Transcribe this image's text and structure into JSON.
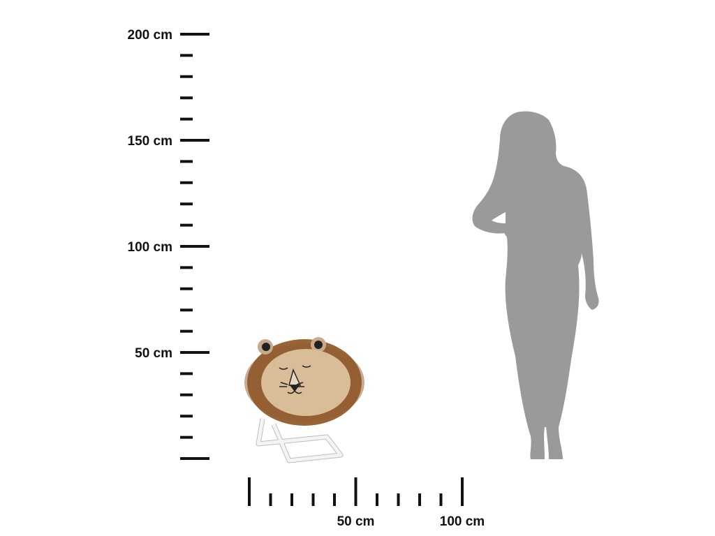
{
  "vertical_scale": {
    "unit": "cm",
    "range": [
      0,
      200
    ],
    "minor_step": 10,
    "labels": [
      {
        "value": 200,
        "text": "200 cm"
      },
      {
        "value": 150,
        "text": "150 cm"
      },
      {
        "value": 100,
        "text": "100 cm"
      },
      {
        "value": 50,
        "text": "50 cm"
      }
    ]
  },
  "horizontal_scale": {
    "unit": "cm",
    "range": [
      0,
      100
    ],
    "minor_step": 10,
    "labels": [
      {
        "value": 50,
        "text": "50 cm"
      },
      {
        "value": 100,
        "text": "100 cm"
      }
    ]
  },
  "colors": {
    "ruler": "#111111",
    "silhouette": "#9a9a9a",
    "fur": "#9a6436",
    "seat": "#d9bc98",
    "frame": "#f2f2f2"
  }
}
